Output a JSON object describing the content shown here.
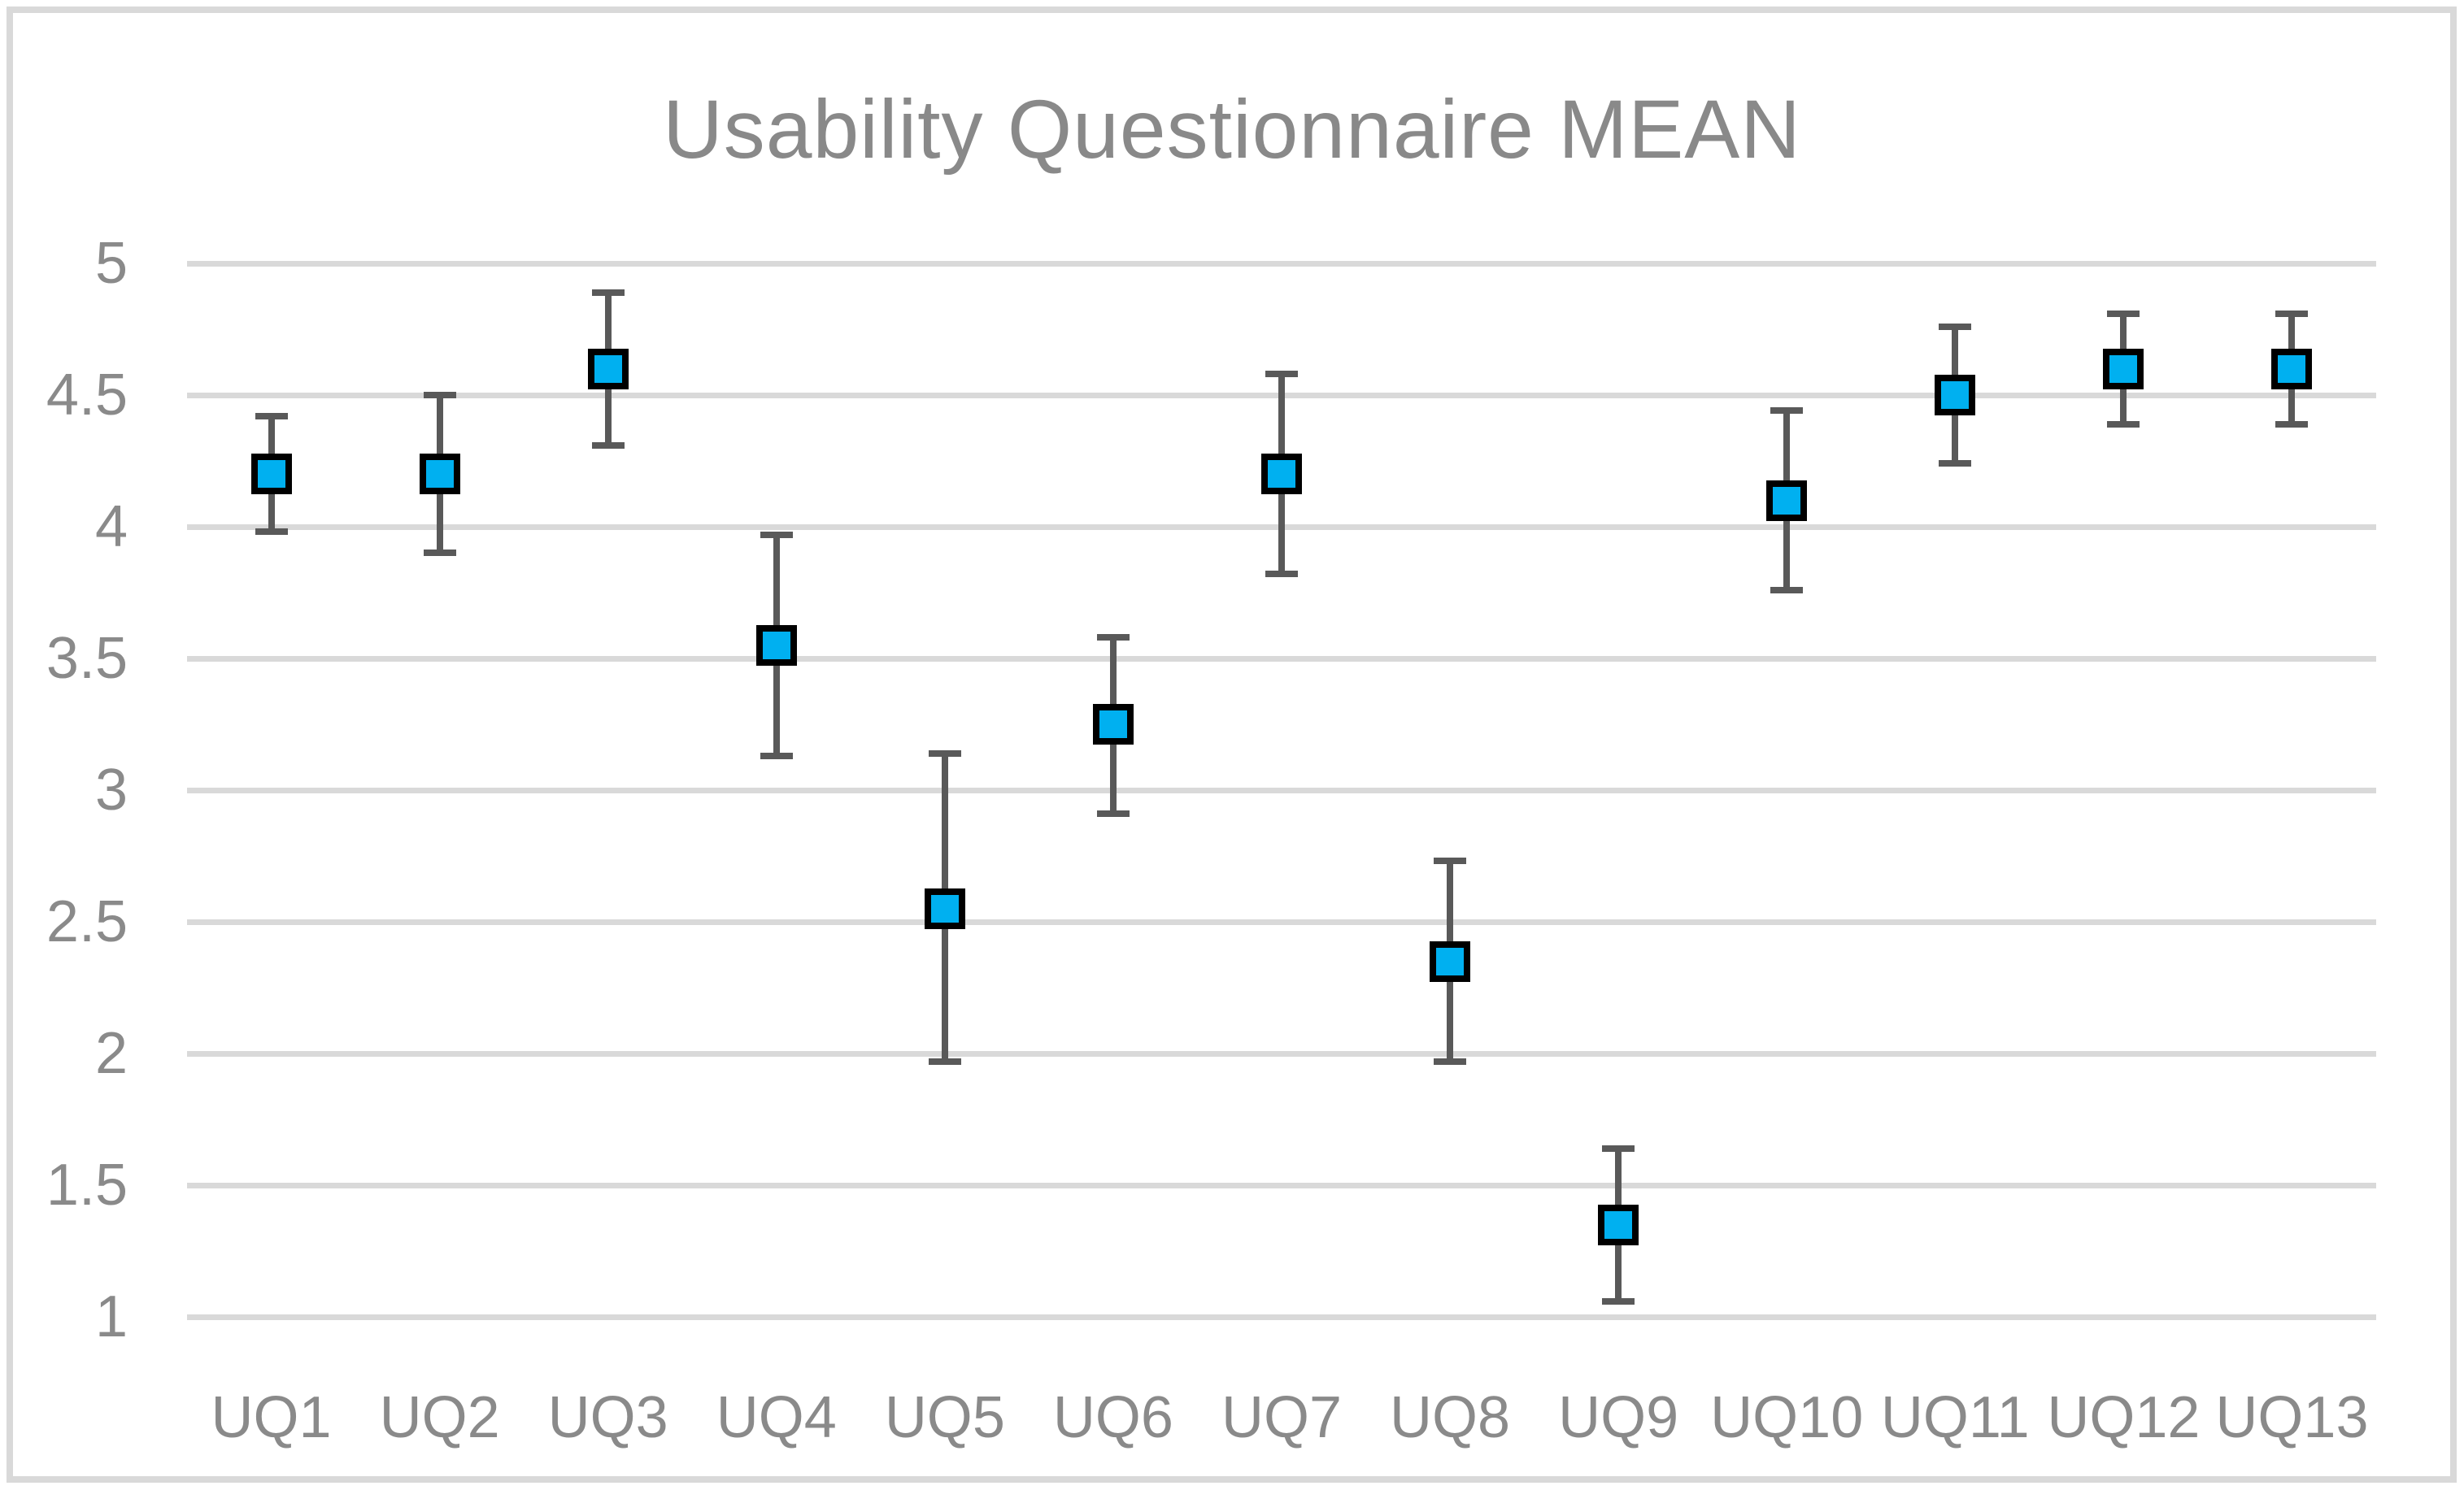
{
  "title": "Usability Questionnaire MEAN",
  "chart_data": {
    "type": "scatter",
    "title": "Usability Questionnaire MEAN",
    "subtitle": "",
    "xlabel": "",
    "ylabel": "",
    "categories": [
      "UQ1",
      "UQ2",
      "UQ3",
      "UQ4",
      "UQ5",
      "UQ6",
      "UQ7",
      "UQ8",
      "UQ9",
      "UQ10",
      "UQ11",
      "UQ12",
      "UQ13"
    ],
    "series": [
      {
        "name": "MEAN",
        "values": [
          4.2,
          4.2,
          4.6,
          3.55,
          2.55,
          3.25,
          4.2,
          2.35,
          1.35,
          4.1,
          4.5,
          4.6,
          4.6
        ]
      }
    ],
    "error_bars": {
      "upper": [
        4.42,
        4.5,
        4.89,
        3.97,
        3.14,
        3.58,
        4.58,
        2.73,
        1.64,
        4.44,
        4.76,
        4.81,
        4.81
      ],
      "lower": [
        3.98,
        3.9,
        4.31,
        3.13,
        1.97,
        2.91,
        3.82,
        1.97,
        1.06,
        3.76,
        4.24,
        4.39,
        4.39
      ]
    },
    "ylim": [
      1,
      5
    ],
    "yticks": [
      {
        "value": 5,
        "label": "5"
      },
      {
        "value": 4.5,
        "label": "4.5"
      },
      {
        "value": 4,
        "label": "4"
      },
      {
        "value": 3.5,
        "label": "3.5"
      },
      {
        "value": 3,
        "label": "3"
      },
      {
        "value": 2.5,
        "label": "2.5"
      },
      {
        "value": 2,
        "label": "2"
      },
      {
        "value": 1.5,
        "label": "1.5"
      },
      {
        "value": 1,
        "label": "1"
      }
    ],
    "grid": true,
    "legend": false,
    "marker_shape": "square",
    "colors": {
      "marker_fill": "#00b0f0",
      "marker_border": "#000000",
      "error_bar": "#595959",
      "gridline": "#d9d9d9",
      "frame_border": "#d9d9d9",
      "text": "#8a8a8a",
      "background": "#ffffff"
    }
  }
}
